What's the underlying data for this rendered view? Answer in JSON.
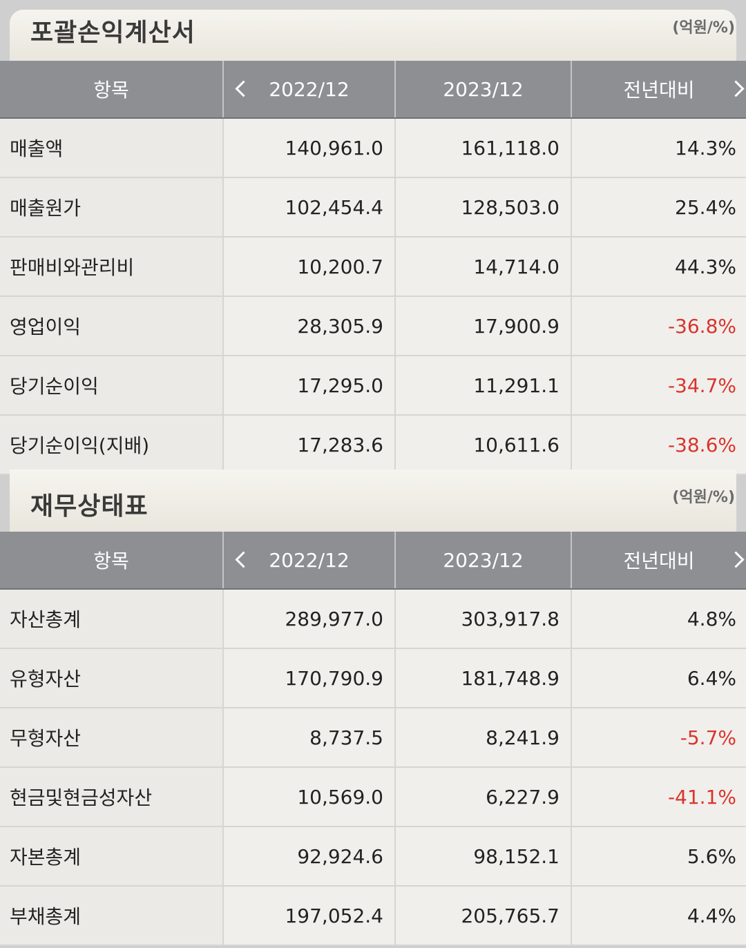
{
  "income_statement": {
    "title": "포괄손익계산서",
    "unit": "(억원/%)",
    "headers": [
      "항목",
      "2022/12",
      "2023/12",
      "전년대비"
    ],
    "rows": [
      {
        "item": "매출액",
        "y2022": "140,961.0",
        "y2023": "161,118.0",
        "yoy": "14.3%",
        "negative": false
      },
      {
        "item": "매출원가",
        "y2022": "102,454.4",
        "y2023": "128,503.0",
        "yoy": "25.4%",
        "negative": false
      },
      {
        "item": "판매비와관리비",
        "y2022": "10,200.7",
        "y2023": "14,714.0",
        "yoy": "44.3%",
        "negative": false
      },
      {
        "item": "영업이익",
        "y2022": "28,305.9",
        "y2023": "17,900.9",
        "yoy": "-36.8%",
        "negative": true
      },
      {
        "item": "당기순이익",
        "y2022": "17,295.0",
        "y2023": "11,291.1",
        "yoy": "-34.7%",
        "negative": true
      },
      {
        "item": "당기순이익(지배)",
        "y2022": "17,283.6",
        "y2023": "10,611.6",
        "yoy": "-38.6%",
        "negative": true
      }
    ]
  },
  "balance_sheet": {
    "title": "재무상태표",
    "unit": "(억원/%)",
    "headers": [
      "항목",
      "2022/12",
      "2023/12",
      "전년대비"
    ],
    "rows": [
      {
        "item": "자산총계",
        "y2022": "289,977.0",
        "y2023": "303,917.8",
        "yoy": "4.8%",
        "negative": false
      },
      {
        "item": "유형자산",
        "y2022": "170,790.9",
        "y2023": "181,748.9",
        "yoy": "6.4%",
        "negative": false
      },
      {
        "item": "무형자산",
        "y2022": "8,737.5",
        "y2023": "8,241.9",
        "yoy": "-5.7%",
        "negative": true
      },
      {
        "item": "현금및현금성자산",
        "y2022": "10,569.0",
        "y2023": "6,227.9",
        "yoy": "-41.1%",
        "negative": true
      },
      {
        "item": "자본총계",
        "y2022": "92,924.6",
        "y2023": "98,152.1",
        "yoy": "5.6%",
        "negative": false
      },
      {
        "item": "부채총계",
        "y2022": "197,052.4",
        "y2023": "205,765.7",
        "yoy": "4.4%",
        "negative": false
      }
    ]
  },
  "icons": {
    "prev": "chevron-left-icon",
    "next": "chevron-right-icon"
  },
  "colors": {
    "header_bg": "#8d8f93",
    "negative": "#d9342b",
    "row_bg": "#f0efec"
  }
}
